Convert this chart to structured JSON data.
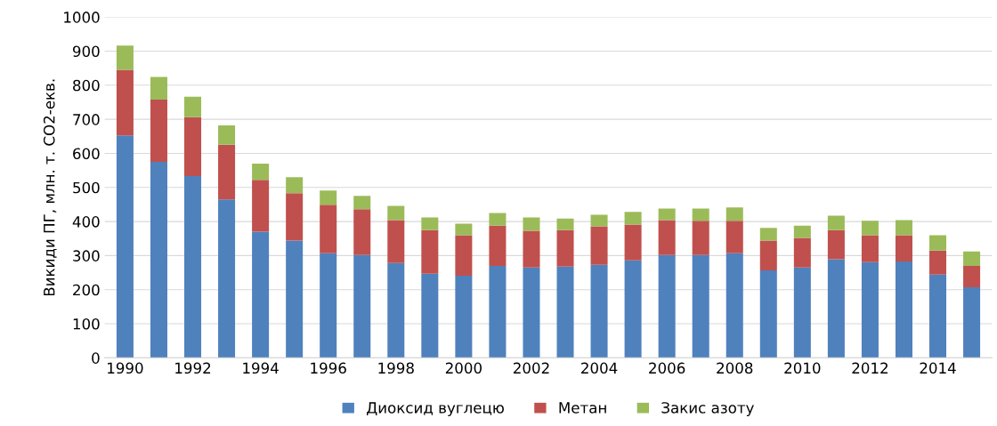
{
  "chart_data": {
    "type": "bar",
    "stacked": true,
    "ylabel": "Викиди ПГ, млн. т. CO2-екв.",
    "categories": [
      "1990",
      null,
      "1992",
      null,
      "1994",
      null,
      "1996",
      null,
      "1998",
      null,
      "2000",
      null,
      "2002",
      null,
      "2004",
      null,
      "2006",
      null,
      "2008",
      null,
      "2010",
      null,
      "2012",
      null,
      "2014",
      null
    ],
    "series": [
      {
        "name": "Диоксид вуглецю",
        "color": "#4f81bd",
        "values": [
          653,
          575,
          533,
          465,
          370,
          344,
          307,
          302,
          278,
          247,
          241,
          270,
          265,
          268,
          273,
          286,
          302,
          302,
          307,
          257,
          265,
          289,
          281,
          283,
          244,
          207
        ]
      },
      {
        "name": "Метан",
        "color": "#c0504d",
        "values": [
          192,
          183,
          173,
          160,
          152,
          139,
          142,
          134,
          126,
          128,
          119,
          118,
          108,
          107,
          113,
          105,
          102,
          100,
          95,
          87,
          87,
          86,
          79,
          77,
          71,
          63
        ]
      },
      {
        "name": "Закис азоту",
        "color": "#9bbb59",
        "values": [
          71,
          66,
          60,
          57,
          48,
          47,
          42,
          39,
          42,
          37,
          34,
          37,
          39,
          34,
          34,
          37,
          34,
          36,
          39,
          37,
          36,
          42,
          42,
          44,
          45,
          42
        ]
      }
    ],
    "ylim": [
      0,
      1000
    ],
    "yticks": [
      0,
      100,
      200,
      300,
      400,
      500,
      600,
      700,
      800,
      900,
      1000
    ],
    "grid": "y",
    "legend": "bottom"
  }
}
